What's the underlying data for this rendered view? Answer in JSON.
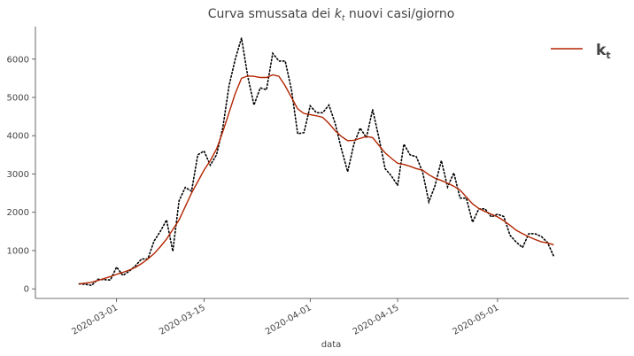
{
  "chart_data": {
    "type": "line",
    "title_main": "Curva smussata dei ",
    "title_var": "k",
    "title_sub": "t",
    "title_rest": " nuovi casi/giorno",
    "xlabel": "data",
    "ylabel": "",
    "ylim": [
      -250,
      6850
    ],
    "xlim": [
      "2020-02-17",
      "2020-05-22"
    ],
    "yticks": [
      0,
      1000,
      2000,
      3000,
      4000,
      5000,
      6000
    ],
    "xticks": [
      "2020-03-01",
      "2020-03-15",
      "2020-04-01",
      "2020-04-15",
      "2020-05-01"
    ],
    "grid": false,
    "legend_position": "top-right",
    "legend_label_main": "k",
    "legend_label_sub": "t",
    "colors": {
      "smoothed": "#b22400",
      "daily": "#000000",
      "axis": "#444444"
    },
    "x": [
      "2020-02-24",
      "2020-02-25",
      "2020-02-26",
      "2020-02-27",
      "2020-02-28",
      "2020-02-29",
      "2020-03-01",
      "2020-03-02",
      "2020-03-03",
      "2020-03-04",
      "2020-03-05",
      "2020-03-06",
      "2020-03-07",
      "2020-03-08",
      "2020-03-09",
      "2020-03-10",
      "2020-03-11",
      "2020-03-12",
      "2020-03-13",
      "2020-03-14",
      "2020-03-15",
      "2020-03-16",
      "2020-03-17",
      "2020-03-18",
      "2020-03-19",
      "2020-03-20",
      "2020-03-21",
      "2020-03-22",
      "2020-03-23",
      "2020-03-24",
      "2020-03-25",
      "2020-03-26",
      "2020-03-27",
      "2020-03-28",
      "2020-03-29",
      "2020-03-30",
      "2020-03-31",
      "2020-04-01",
      "2020-04-02",
      "2020-04-03",
      "2020-04-04",
      "2020-04-05",
      "2020-04-06",
      "2020-04-07",
      "2020-04-08",
      "2020-04-09",
      "2020-04-10",
      "2020-04-11",
      "2020-04-12",
      "2020-04-13",
      "2020-04-14",
      "2020-04-15",
      "2020-04-16",
      "2020-04-17",
      "2020-04-18",
      "2020-04-19",
      "2020-04-20",
      "2020-04-21",
      "2020-04-22",
      "2020-04-23",
      "2020-04-24",
      "2020-04-25",
      "2020-04-26",
      "2020-04-27",
      "2020-04-28",
      "2020-04-29",
      "2020-04-30",
      "2020-05-01",
      "2020-05-02",
      "2020-05-03",
      "2020-05-04",
      "2020-05-05",
      "2020-05-06",
      "2020-05-07",
      "2020-05-08",
      "2020-05-09",
      "2020-05-10"
    ],
    "series": [
      {
        "name": "daily",
        "style": "dotted",
        "values": [
          130,
          120,
          90,
          250,
          240,
          230,
          570,
          350,
          460,
          600,
          780,
          780,
          1250,
          1500,
          1800,
          980,
          2300,
          2650,
          2550,
          3500,
          3600,
          3230,
          3500,
          4200,
          5300,
          6000,
          6550,
          5550,
          4800,
          5250,
          5200,
          6150,
          5950,
          5950,
          5200,
          4050,
          4080,
          4780,
          4600,
          4600,
          4800,
          4320,
          3650,
          3060,
          3780,
          4200,
          3950,
          4680,
          3950,
          3140,
          2950,
          2700,
          3780,
          3500,
          3450,
          3050,
          2270,
          2700,
          3350,
          2660,
          3030,
          2370,
          2370,
          1740,
          2090,
          2090,
          1880,
          1950,
          1890,
          1400,
          1220,
          1080,
          1440,
          1440,
          1370,
          1210,
          850
        ]
      },
      {
        "name": "kt",
        "style": "solid",
        "values": [
          130,
          150,
          170,
          220,
          270,
          320,
          380,
          430,
          490,
          560,
          660,
          780,
          920,
          1100,
          1300,
          1550,
          1800,
          2150,
          2500,
          2800,
          3100,
          3350,
          3650,
          4100,
          4600,
          5100,
          5500,
          5560,
          5550,
          5520,
          5520,
          5590,
          5550,
          5300,
          5000,
          4700,
          4580,
          4550,
          4520,
          4480,
          4320,
          4130,
          3980,
          3870,
          3880,
          3930,
          3980,
          3950,
          3750,
          3550,
          3410,
          3280,
          3250,
          3200,
          3140,
          3100,
          2980,
          2890,
          2830,
          2760,
          2680,
          2580,
          2400,
          2220,
          2100,
          2020,
          1950,
          1880,
          1780,
          1660,
          1530,
          1440,
          1360,
          1290,
          1230,
          1200,
          1150
        ]
      }
    ]
  }
}
